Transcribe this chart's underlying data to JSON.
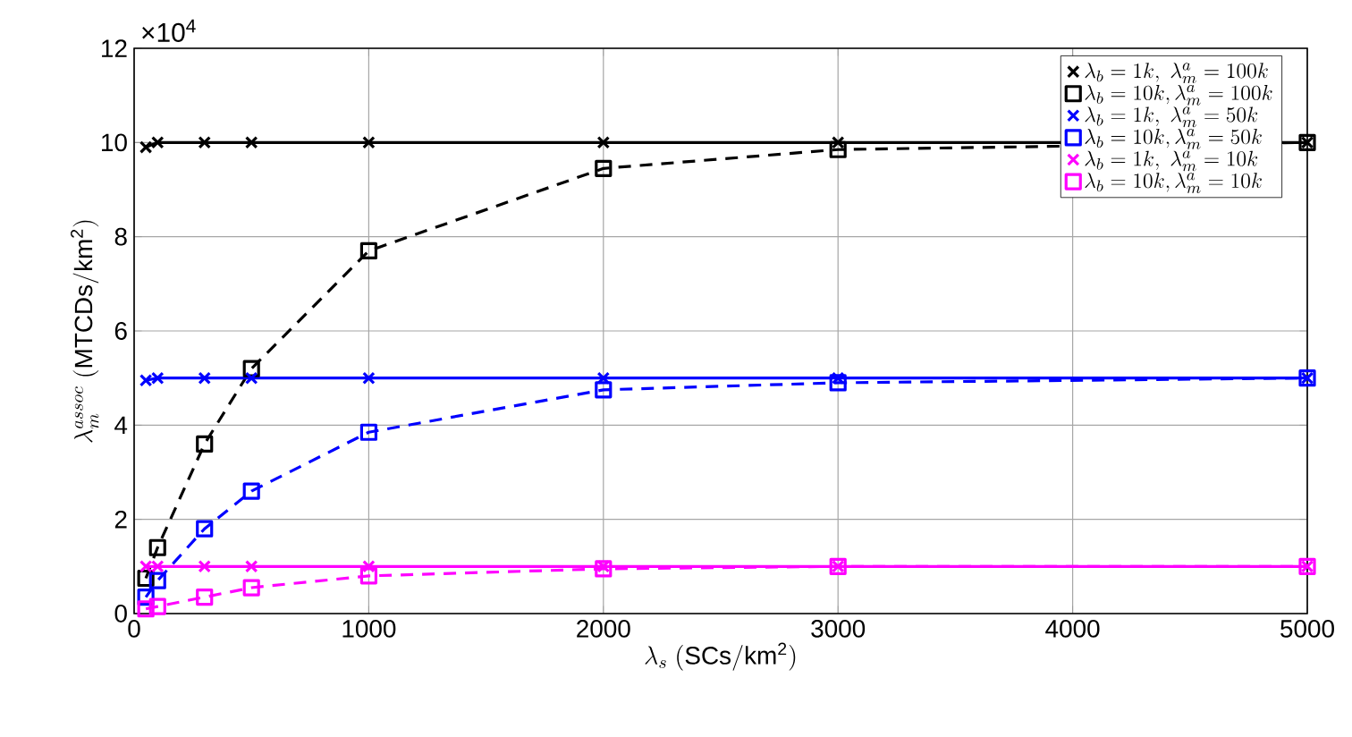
{
  "chart_data": {
    "type": "line",
    "xlabel": "\\lambda_s\\ (\\mathrm{SCs/km^2})",
    "ylabel": "\\lambda_m^{assoc}\\ (\\mathrm{MTCDs/km^2})",
    "annotations": [
      "×10$^{4}$"
    ],
    "x": [
      50,
      100,
      300,
      500,
      1000,
      2000,
      3000,
      5000
    ],
    "xlim": [
      0,
      5000
    ],
    "xticks": [
      0,
      1000,
      2000,
      3000,
      4000,
      5000
    ],
    "ylim": [
      0,
      12
    ],
    "yticks": [
      0,
      2,
      4,
      6,
      8,
      10,
      12
    ],
    "grid": true,
    "legend": "top right",
    "series": [
      {
        "name": "\\lambda_b = 1k,\\ \\lambda_m^a = 100k",
        "color": "#000000",
        "marker": "cross",
        "line_style": "solid",
        "values": [
          9.9,
          10,
          10,
          10,
          10,
          10,
          10,
          10
        ]
      },
      {
        "name": "\\lambda_b = 10k, \\lambda_m^a = 100k",
        "color": "#000000",
        "marker": "square",
        "line_style": "dashed",
        "values": [
          0.75,
          1.4,
          3.6,
          5.2,
          7.7,
          9.45,
          9.85,
          10
        ]
      },
      {
        "name": "\\lambda_b = 1k,\\ \\lambda_m^a = 50k",
        "color": "#0000ff",
        "marker": "cross",
        "line_style": "solid",
        "values": [
          4.95,
          5,
          5,
          5,
          5,
          5,
          5,
          5
        ]
      },
      {
        "name": "\\lambda_b = 10k, \\lambda_m^a = 50k",
        "color": "#0000ff",
        "marker": "square",
        "line_style": "dashed",
        "values": [
          0.35,
          0.7,
          1.8,
          2.6,
          3.85,
          4.75,
          4.9,
          5
        ]
      },
      {
        "name": "\\lambda_b = 1k,\\ \\lambda_m^a = 10k",
        "color": "#ff00ff",
        "marker": "cross",
        "line_style": "solid",
        "values": [
          1,
          1,
          1,
          1,
          1,
          1,
          1,
          1
        ]
      },
      {
        "name": "\\lambda_b = 10k, \\lambda_m^a = 10k",
        "color": "#ff00ff",
        "marker": "square",
        "line_style": "dashed",
        "values": [
          0.1,
          0.15,
          0.35,
          0.55,
          0.8,
          0.95,
          1,
          1
        ]
      }
    ]
  }
}
